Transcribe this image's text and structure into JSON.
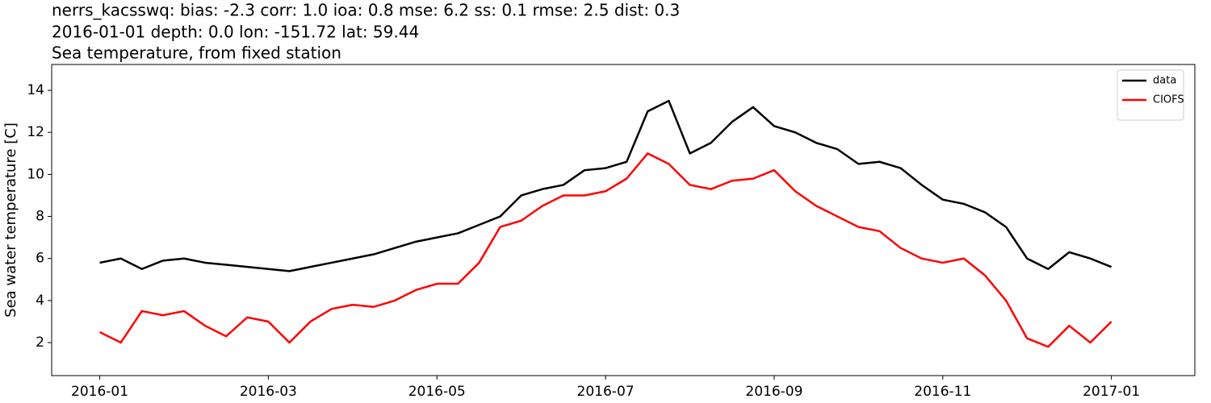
{
  "chart_data": {
    "type": "line",
    "title": [
      "nerrs_kacsswq: bias: -2.3  corr: 1.0  ioa: 0.8  mse: 6.2  ss: 0.1  rmse: 2.5  dist: 0.3",
      "2016-01-01 depth: 0.0 lon: -151.72 lat: 59.44",
      "Sea temperature, from fixed station"
    ],
    "y_label": "Sea water temperature [C]",
    "x": [
      0,
      0.25,
      0.5,
      0.75,
      1,
      1.25,
      1.5,
      1.75,
      2,
      2.25,
      2.5,
      2.75,
      3,
      3.25,
      3.5,
      3.75,
      4,
      4.25,
      4.5,
      4.75,
      5,
      5.25,
      5.5,
      5.75,
      6,
      6.25,
      6.5,
      6.75,
      7,
      7.25,
      7.5,
      7.75,
      8,
      8.25,
      8.5,
      8.75,
      9,
      9.25,
      9.5,
      9.75,
      10,
      10.25,
      10.5,
      10.75,
      11,
      11.25,
      11.5,
      11.75,
      12
    ],
    "series": [
      {
        "name": "data",
        "color": "#000000",
        "values": [
          5.8,
          6.0,
          5.5,
          5.9,
          6.0,
          5.8,
          5.7,
          5.6,
          5.5,
          5.4,
          5.6,
          5.8,
          6.0,
          6.2,
          6.5,
          6.8,
          7.0,
          7.2,
          7.6,
          8.0,
          9.0,
          9.3,
          9.5,
          10.2,
          10.3,
          10.6,
          13.0,
          13.5,
          11.0,
          11.5,
          12.5,
          13.2,
          12.3,
          12.0,
          11.5,
          11.2,
          10.5,
          10.6,
          10.3,
          9.5,
          8.8,
          8.6,
          8.2,
          7.5,
          6.0,
          5.5,
          6.3,
          6.0,
          5.6
        ]
      },
      {
        "name": "CIOFS",
        "color": "#ff0000",
        "values": [
          2.5,
          2.0,
          3.5,
          3.3,
          3.5,
          2.8,
          2.3,
          3.2,
          3.0,
          2.0,
          3.0,
          3.6,
          3.8,
          3.7,
          4.0,
          4.5,
          4.8,
          4.8,
          5.8,
          7.5,
          7.8,
          8.5,
          9.0,
          9.0,
          9.2,
          9.8,
          11.0,
          10.5,
          9.5,
          9.3,
          9.7,
          9.8,
          10.2,
          9.2,
          8.5,
          8.0,
          7.5,
          7.3,
          6.5,
          6.0,
          5.8,
          6.0,
          5.2,
          4.0,
          2.2,
          1.8,
          2.8,
          2.0,
          3.0
        ]
      }
    ],
    "xlim": [
      -0.57,
      12.99
    ],
    "xticks": [
      {
        "value": 0,
        "label": "2016-01"
      },
      {
        "value": 2,
        "label": "2016-03"
      },
      {
        "value": 4,
        "label": "2016-05"
      },
      {
        "value": 6,
        "label": "2016-07"
      },
      {
        "value": 8,
        "label": "2016-09"
      },
      {
        "value": 10,
        "label": "2016-11"
      },
      {
        "value": 12,
        "label": "2017-01"
      }
    ],
    "ylim": [
      0.43,
      15.23
    ],
    "yticks": [
      2,
      4,
      6,
      8,
      10,
      12,
      14
    ],
    "grid": false,
    "legend": "upper right"
  }
}
